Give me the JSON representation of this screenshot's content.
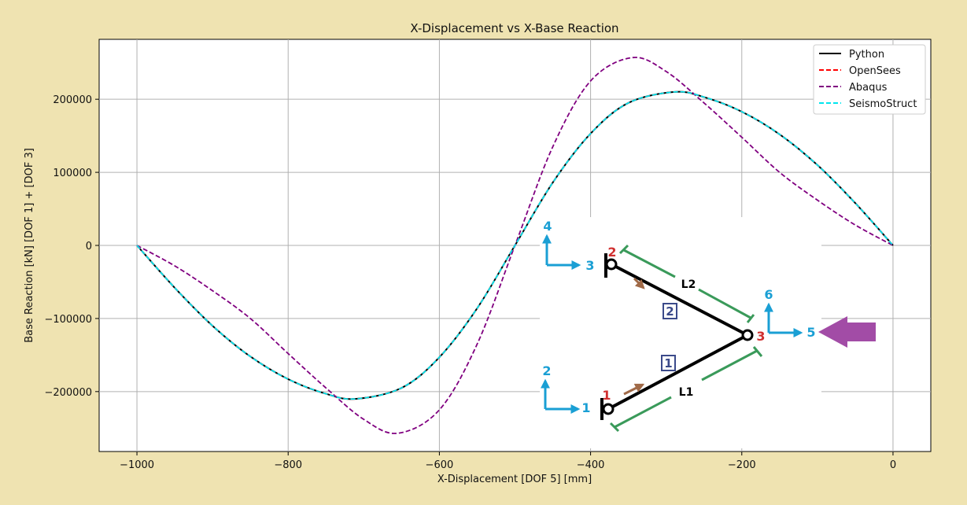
{
  "chart_data": {
    "type": "line",
    "title": "X-Displacement vs X-Base Reaction",
    "xlabel": "X-Displacement [DOF 5] [mm]",
    "ylabel": "Base Reaction [kN] [DOF 1] + [DOF 3]",
    "xlim": [
      -1050,
      50
    ],
    "ylim": [
      -282000,
      282000
    ],
    "xticks": [
      -1000,
      -800,
      -600,
      -400,
      -200,
      0
    ],
    "xtick_labels": [
      "−1000",
      "−800",
      "−600",
      "−400",
      "−200",
      "0"
    ],
    "yticks": [
      -200000,
      -100000,
      0,
      100000,
      200000
    ],
    "ytick_labels": [
      "−200000",
      "−100000",
      "0",
      "100000",
      "200000"
    ],
    "grid": true,
    "legend_position": "top-right",
    "series": [
      {
        "name": "Python",
        "color": "#000000",
        "dash": "solid",
        "x": [
          -1000,
          -950,
          -900,
          -850,
          -800,
          -750,
          -711,
          -650,
          -600,
          -550,
          -500,
          -450,
          -400,
          -350,
          -289,
          -250,
          -200,
          -150,
          -100,
          -50,
          0
        ],
        "y": [
          0,
          -58000,
          -110000,
          -152000,
          -183000,
          -203000,
          -210000,
          -195000,
          -153000,
          -86000,
          0,
          86000,
          153000,
          195000,
          210000,
          203000,
          183000,
          152000,
          110000,
          58000,
          0
        ]
      },
      {
        "name": "OpenSees",
        "color": "#ff0000",
        "dash": "dashed",
        "x": [
          -1000,
          -950,
          -900,
          -850,
          -800,
          -750,
          -711,
          -650,
          -600,
          -550,
          -500,
          -450,
          -400,
          -350,
          -289,
          -250,
          -200,
          -150,
          -100,
          -50,
          0
        ],
        "y": [
          0,
          -58000,
          -110000,
          -152000,
          -183000,
          -203000,
          -210000,
          -195000,
          -153000,
          -86000,
          0,
          86000,
          153000,
          195000,
          210000,
          203000,
          183000,
          152000,
          110000,
          58000,
          0
        ]
      },
      {
        "name": "Abaqus",
        "color": "#800080",
        "dash": "dashed",
        "x": [
          -1000,
          -950,
          -900,
          -850,
          -800,
          -750,
          -700,
          -655,
          -600,
          -550,
          -500,
          -450,
          -400,
          -345,
          -300,
          -250,
          -200,
          -150,
          -100,
          -50,
          0
        ],
        "y": [
          0,
          -28000,
          -62000,
          -100000,
          -148000,
          -195000,
          -238000,
          -257000,
          -225000,
          -135000,
          0,
          135000,
          225000,
          257000,
          238000,
          195000,
          148000,
          100000,
          62000,
          28000,
          0
        ]
      },
      {
        "name": "SeismoStruct",
        "color": "#00e5ee",
        "dash": "dashed",
        "x": [
          -1000,
          -950,
          -900,
          -850,
          -800,
          -750,
          -711,
          -650,
          -600,
          -550,
          -500,
          -450,
          -400,
          -350,
          -289,
          -250,
          -200,
          -150,
          -100,
          -50,
          0
        ],
        "y": [
          0,
          -58000,
          -110000,
          -152000,
          -183000,
          -203000,
          -210000,
          -195000,
          -153000,
          -86000,
          0,
          86000,
          153000,
          195000,
          210000,
          203000,
          183000,
          152000,
          110000,
          58000,
          0
        ]
      }
    ]
  },
  "inset": {
    "dof_labels": [
      "4",
      "3",
      "2",
      "1",
      "6",
      "5"
    ],
    "node_labels": [
      "2",
      "1",
      "3"
    ],
    "element_labels": [
      "2",
      "1"
    ],
    "length_labels": [
      "L2",
      "L1"
    ],
    "colors": {
      "dof": "#1a9fd4",
      "node": "#d03030",
      "element": "#3b4a8a",
      "dimension": "#3a9a5a",
      "local_axis": "#a06a48",
      "load": "#a24ca6",
      "frame": "#000000"
    }
  }
}
